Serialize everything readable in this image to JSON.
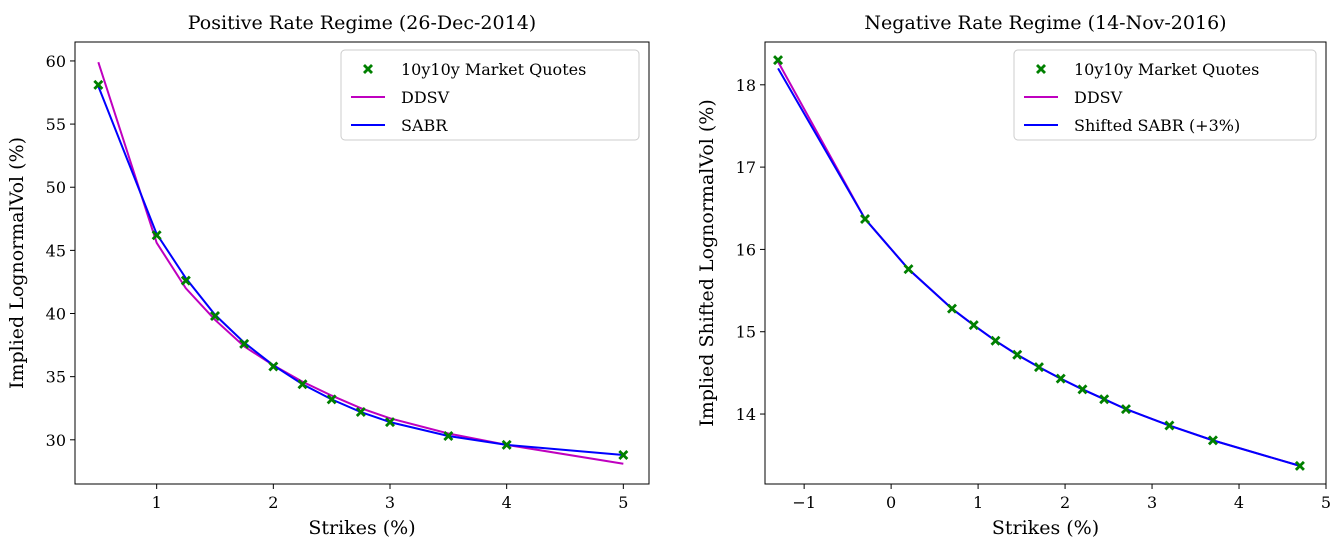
{
  "chart_data": [
    {
      "type": "line",
      "title": "Positive Rate Regime (26-Dec-2014)",
      "x_label": "Strikes (%)",
      "y_label": "Implied LognormalVol (%)",
      "x": [
        0.5,
        1,
        1.25,
        1.5,
        1.75,
        2,
        2.25,
        2.5,
        2.75,
        3,
        3.5,
        4,
        5
      ],
      "series": [
        {
          "name": "10y10y Market Quotes",
          "color": "#008000",
          "style": "markers",
          "values": [
            58.1,
            46.2,
            42.6,
            39.8,
            37.6,
            35.8,
            34.4,
            33.2,
            32.2,
            31.4,
            30.3,
            29.6,
            28.8
          ]
        },
        {
          "name": "DDSV",
          "color": "#bf00bf",
          "style": "line",
          "values": [
            59.9,
            45.6,
            42.0,
            39.5,
            37.4,
            35.9,
            34.6,
            33.5,
            32.5,
            31.7,
            30.5,
            29.6,
            28.1
          ]
        },
        {
          "name": "SABR",
          "color": "#0000ff",
          "style": "line",
          "values": [
            58.0,
            46.3,
            42.8,
            39.9,
            37.7,
            35.9,
            34.4,
            33.2,
            32.2,
            31.4,
            30.3,
            29.6,
            28.8
          ]
        }
      ],
      "xlim": [
        0.3,
        5.22
      ],
      "xticks": [
        1,
        2,
        3,
        4,
        5
      ],
      "ylim": [
        26.5,
        61.5
      ],
      "yticks": [
        30,
        35,
        40,
        45,
        50,
        55,
        60
      ],
      "legend": "upper right"
    },
    {
      "type": "line",
      "title": "Negative Rate Regime (14-Nov-2016)",
      "x_label": "Strikes (%)",
      "y_label": "Implied Shifted LognormalVol (%)",
      "x": [
        -1.3,
        -0.3,
        0.2,
        0.7,
        0.95,
        1.2,
        1.45,
        1.7,
        1.95,
        2.2,
        2.45,
        2.7,
        3.2,
        3.7,
        4.7
      ],
      "series": [
        {
          "name": "10y10y Market Quotes",
          "color": "#008000",
          "style": "markers",
          "values": [
            18.3,
            16.37,
            15.76,
            15.28,
            15.08,
            14.89,
            14.72,
            14.57,
            14.43,
            14.3,
            14.18,
            14.06,
            13.86,
            13.68,
            13.37
          ]
        },
        {
          "name": "DDSV",
          "color": "#bf00bf",
          "style": "line",
          "values": [
            18.28,
            16.37,
            15.76,
            15.28,
            15.08,
            14.89,
            14.72,
            14.57,
            14.43,
            14.3,
            14.18,
            14.06,
            13.86,
            13.68,
            13.37
          ]
        },
        {
          "name": "Shifted SABR (+3%)",
          "color": "#0000ff",
          "style": "line",
          "values": [
            18.2,
            16.37,
            15.76,
            15.28,
            15.08,
            14.89,
            14.72,
            14.57,
            14.43,
            14.3,
            14.18,
            14.06,
            13.86,
            13.68,
            13.37
          ]
        }
      ],
      "xlim": [
        -1.45,
        5.0
      ],
      "xticks": [
        {
          "value": -1,
          "label": "−1"
        },
        0,
        1,
        2,
        3,
        4,
        5
      ],
      "ylim": [
        13.15,
        18.52
      ],
      "yticks": [
        14,
        15,
        16,
        17,
        18
      ],
      "legend": "upper right"
    }
  ]
}
